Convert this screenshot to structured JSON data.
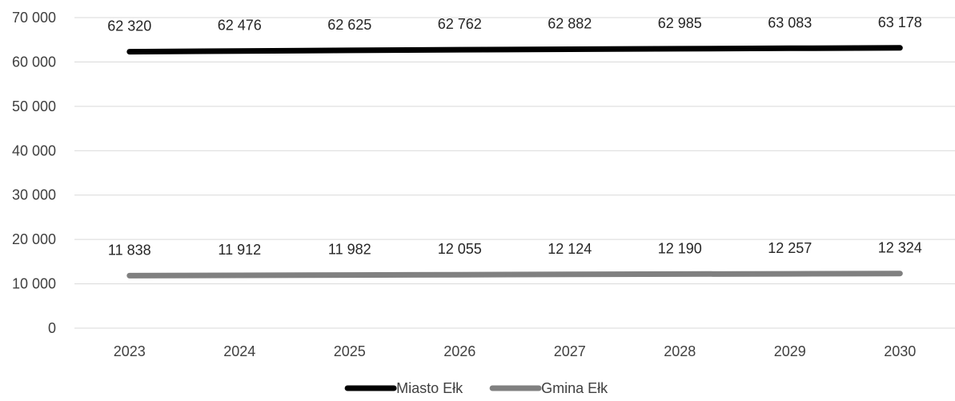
{
  "chart_data": {
    "type": "line",
    "title": "",
    "xlabel": "",
    "ylabel": "",
    "x": [
      "2023",
      "2024",
      "2025",
      "2026",
      "2027",
      "2028",
      "2029",
      "2030"
    ],
    "ylim": [
      0,
      70000
    ],
    "y_ticks": [
      0,
      10000,
      20000,
      30000,
      40000,
      50000,
      60000,
      70000
    ],
    "y_tick_labels": [
      "0",
      "10 000",
      "20 000",
      "30 000",
      "40 000",
      "50 000",
      "60 000",
      "70 000"
    ],
    "grid": true,
    "legend_position": "bottom",
    "series": [
      {
        "name": "Miasto Ełk",
        "color": "#000000",
        "values": [
          62320,
          62476,
          62625,
          62762,
          62882,
          62985,
          63083,
          63178
        ],
        "labels": [
          "62 320",
          "62 476",
          "62 625",
          "62 762",
          "62 882",
          "62 985",
          "63 083",
          "63 178"
        ]
      },
      {
        "name": "Gmina Ełk",
        "color": "#808080",
        "values": [
          11838,
          11912,
          11982,
          12055,
          12124,
          12190,
          12257,
          12324
        ],
        "labels": [
          "11 838",
          "11 912",
          "11 982",
          "12 055",
          "12 124",
          "12 190",
          "12 257",
          "12 324"
        ]
      }
    ]
  }
}
